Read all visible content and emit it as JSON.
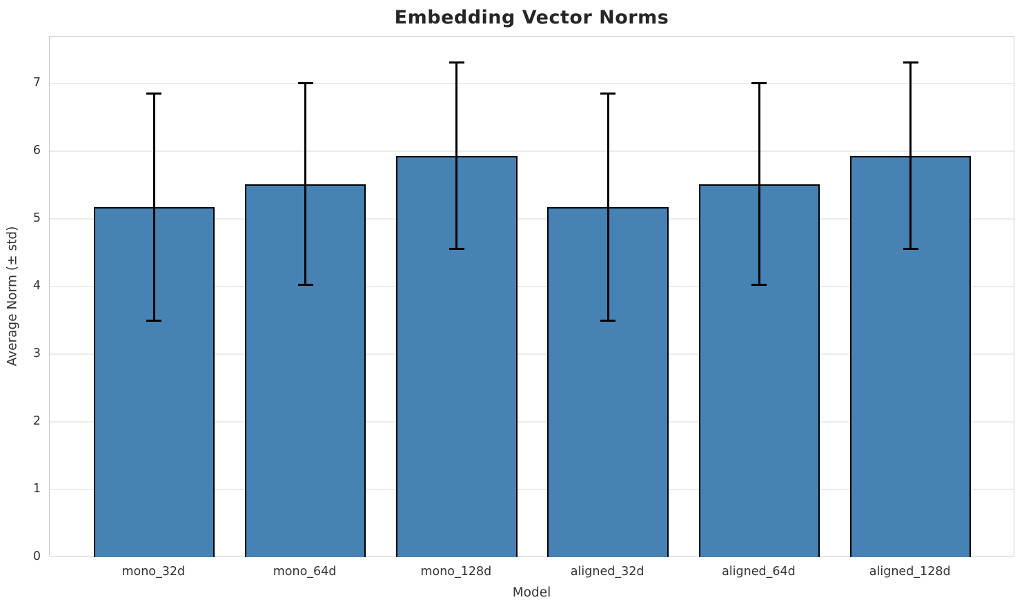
{
  "chart_data": {
    "type": "bar",
    "title": "Embedding Vector Norms",
    "xlabel": "Model",
    "ylabel": "Average Norm (± std)",
    "categories": [
      "mono_32d",
      "mono_64d",
      "mono_128d",
      "aligned_32d",
      "aligned_64d",
      "aligned_128d"
    ],
    "series": [
      {
        "name": "Average Norm (± std)",
        "values": [
          5.17,
          5.51,
          5.93,
          5.17,
          5.51,
          5.93
        ],
        "errors": [
          1.68,
          1.49,
          1.38,
          1.68,
          1.49,
          1.38
        ]
      }
    ],
    "y_ticks": [
      0,
      1,
      2,
      3,
      4,
      5,
      6,
      7
    ],
    "ylim": [
      0,
      7.69
    ],
    "grid": "horizontal",
    "legend": "none",
    "colors": {
      "bar_fill": "#4682B4",
      "bar_edge": "#000000",
      "error_bar": "#000000",
      "grid_line": "#ebebeb",
      "spine": "#c9c9c9",
      "title_text": "#262626",
      "tick_text": "#333333"
    }
  }
}
